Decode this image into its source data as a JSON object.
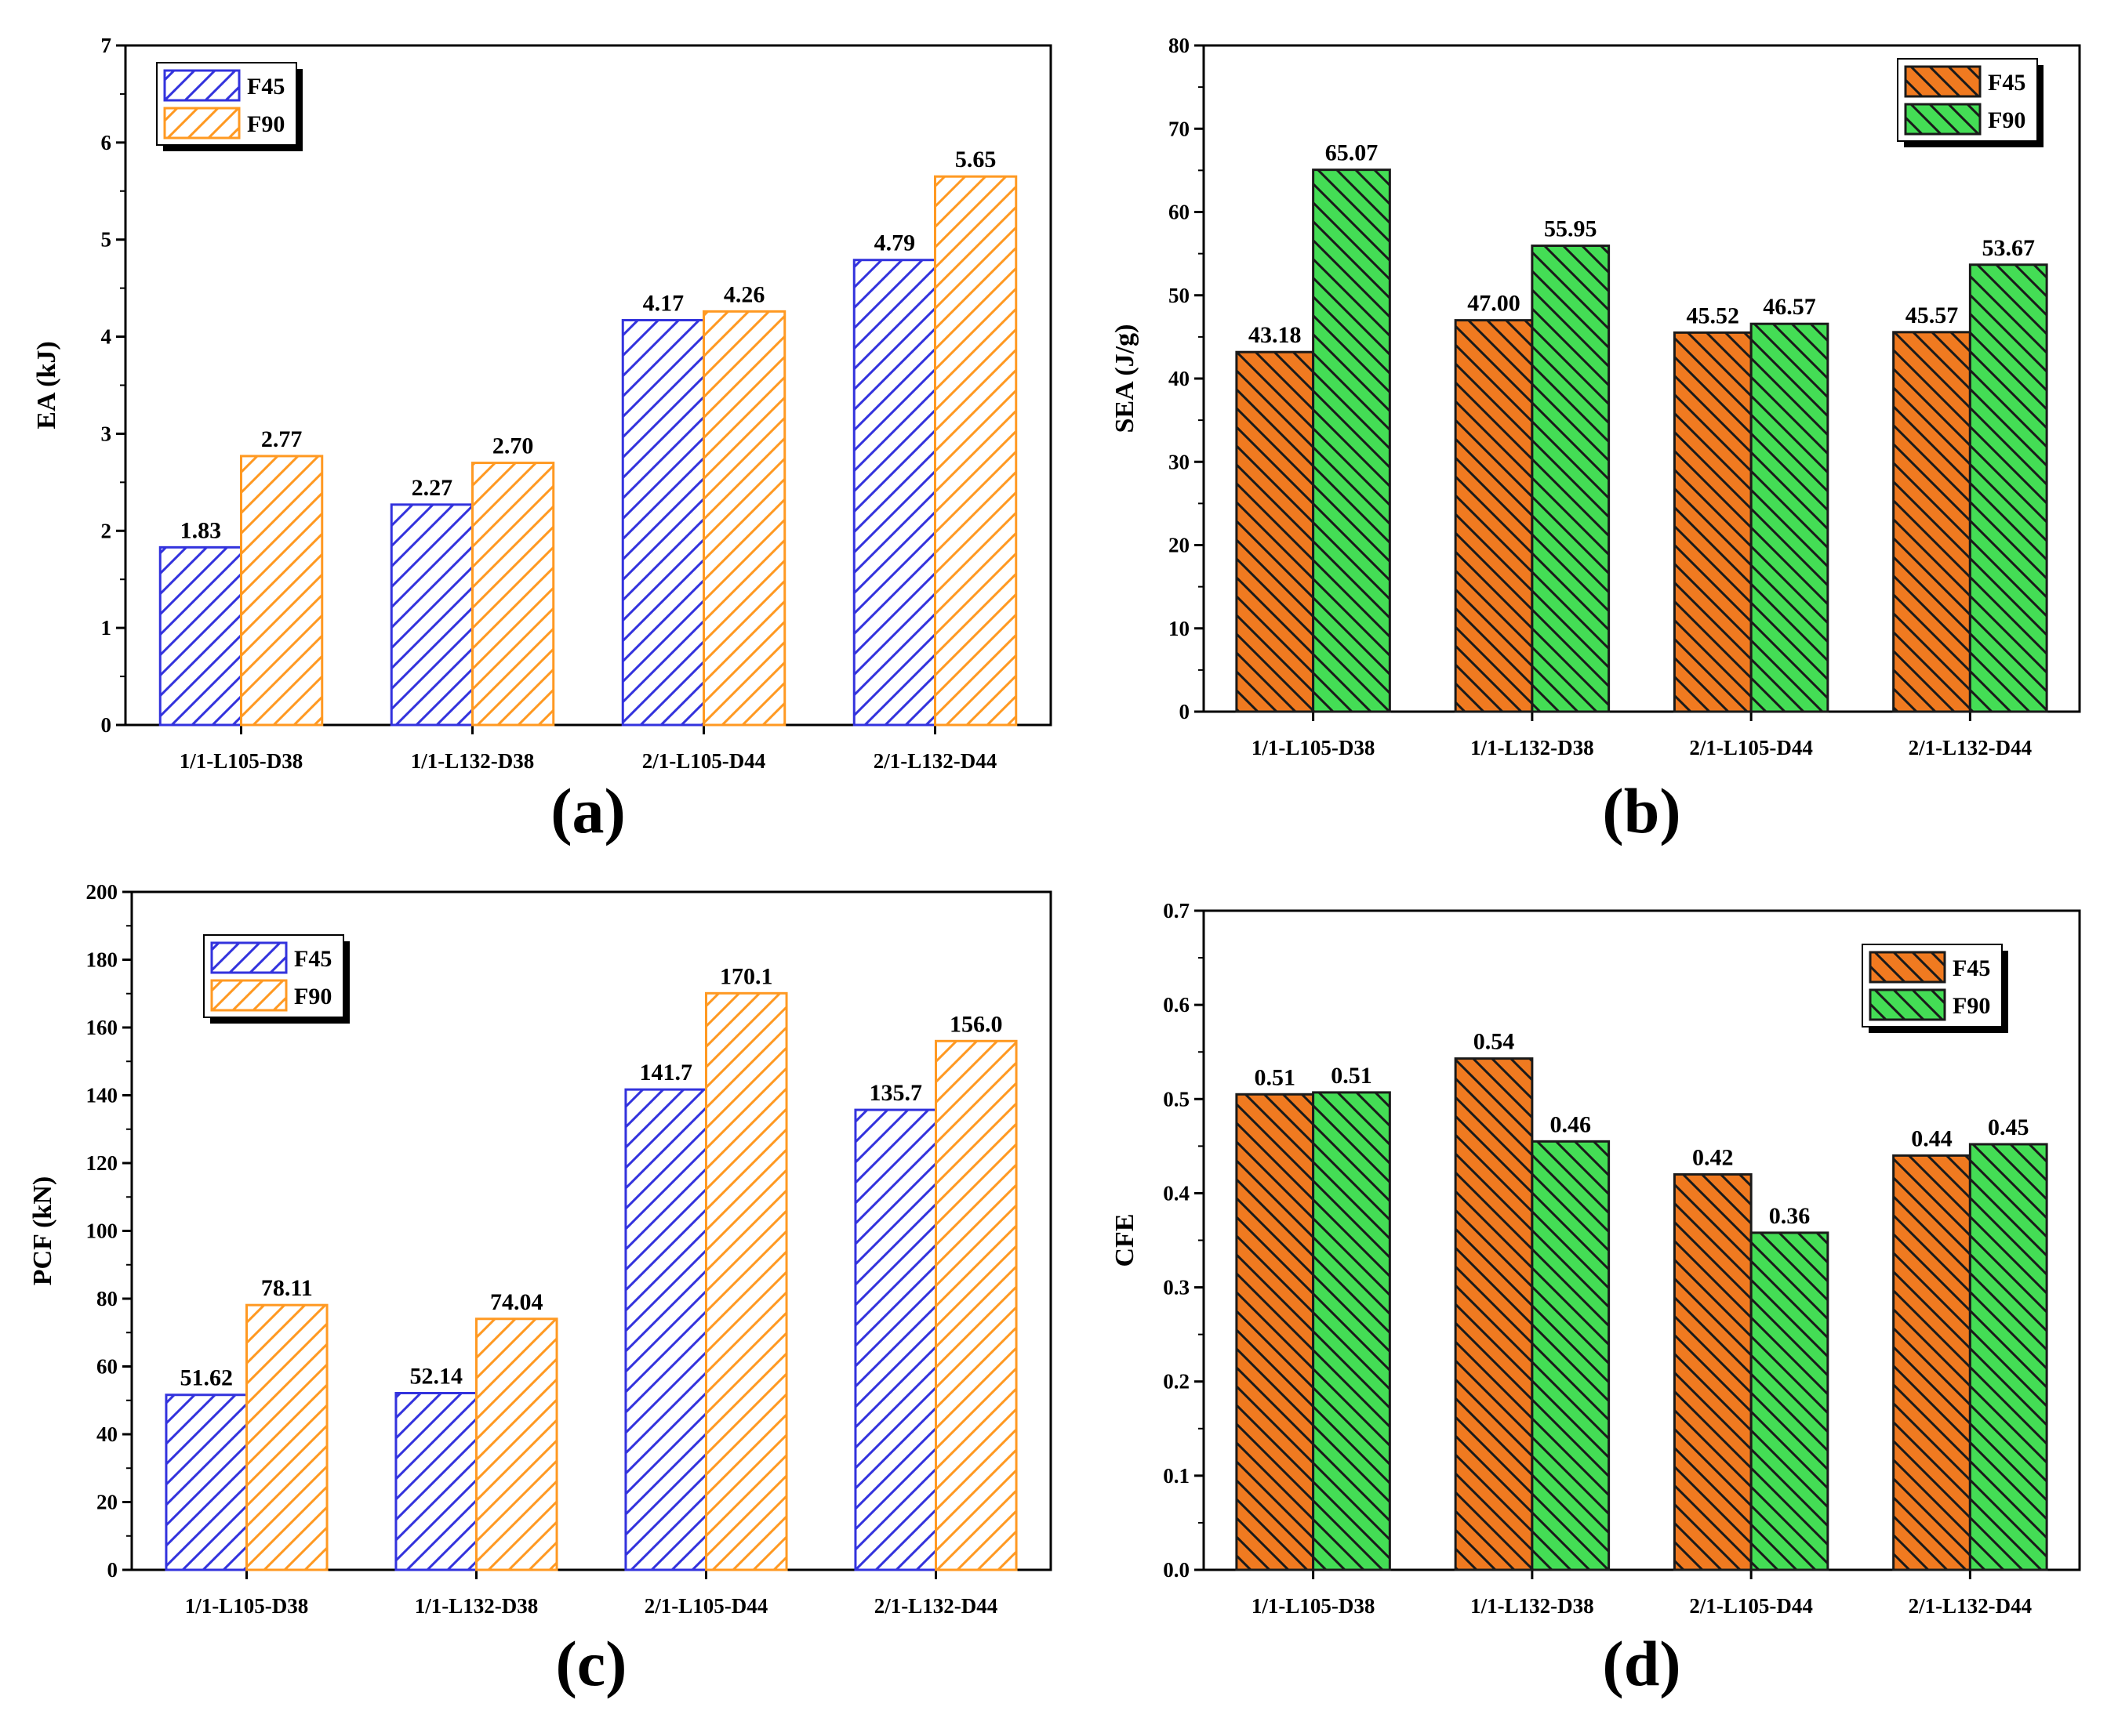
{
  "chart_data": [
    {
      "type": "bar",
      "panel_label": "(a)",
      "categories": [
        "1/1-L105-D38",
        "1/1-L132-D38",
        "2/1-L105-D44",
        "2/1-L132-D44"
      ],
      "series": [
        {
          "name": "F45",
          "values": [
            1.83,
            2.27,
            4.17,
            4.79
          ],
          "labels": [
            "1.83",
            "2.27",
            "4.17",
            "4.79"
          ]
        },
        {
          "name": "F90",
          "values": [
            2.77,
            2.7,
            4.26,
            5.65
          ],
          "labels": [
            "2.77",
            "2.70",
            "4.26",
            "5.65"
          ]
        }
      ],
      "ylabel": "EA (kJ)",
      "ylim": [
        0,
        7
      ],
      "yticks": [
        "0",
        "1",
        "2",
        "3",
        "4",
        "5",
        "6",
        "7"
      ],
      "legend": "top-left",
      "style": "outline-hatch",
      "colors": {
        "F45": "#3333dd",
        "F90": "#ff9922"
      }
    },
    {
      "type": "bar",
      "panel_label": "(b)",
      "categories": [
        "1/1-L105-D38",
        "1/1-L132-D38",
        "2/1-L105-D44",
        "2/1-L132-D44"
      ],
      "series": [
        {
          "name": "F45",
          "values": [
            43.18,
            47.0,
            45.52,
            45.57
          ],
          "labels": [
            "43.18",
            "47.00",
            "45.52",
            "45.57"
          ]
        },
        {
          "name": "F90",
          "values": [
            65.07,
            55.95,
            46.57,
            53.67
          ],
          "labels": [
            "65.07",
            "55.95",
            "46.57",
            "53.67"
          ]
        }
      ],
      "ylabel": "SEA (J/g)",
      "ylim": [
        0,
        80
      ],
      "yticks": [
        "0",
        "10",
        "20",
        "30",
        "40",
        "50",
        "60",
        "70",
        "80"
      ],
      "legend": "top-right",
      "style": "filled-hatch",
      "colors": {
        "F45": "#f07a20",
        "F90": "#44dd55"
      }
    },
    {
      "type": "bar",
      "panel_label": "(c)",
      "categories": [
        "1/1-L105-D38",
        "1/1-L132-D38",
        "2/1-L105-D44",
        "2/1-L132-D44"
      ],
      "series": [
        {
          "name": "F45",
          "values": [
            51.62,
            52.14,
            141.7,
            135.7
          ],
          "labels": [
            "51.62",
            "52.14",
            "141.7",
            "135.7"
          ]
        },
        {
          "name": "F90",
          "values": [
            78.11,
            74.04,
            170.1,
            156.0
          ],
          "labels": [
            "78.11",
            "74.04",
            "170.1",
            "156.0"
          ]
        }
      ],
      "ylabel": "PCF (kN)",
      "ylim": [
        0,
        200
      ],
      "yticks": [
        "0",
        "20",
        "40",
        "60",
        "80",
        "100",
        "120",
        "140",
        "160",
        "180",
        "200"
      ],
      "legend": "top-left",
      "style": "outline-hatch",
      "colors": {
        "F45": "#3333dd",
        "F90": "#ff9922"
      }
    },
    {
      "type": "bar",
      "panel_label": "(d)",
      "categories": [
        "1/1-L105-D38",
        "1/1-L132-D38",
        "2/1-L105-D44",
        "2/1-L132-D44"
      ],
      "series": [
        {
          "name": "F45",
          "values": [
            0.505,
            0.543,
            0.42,
            0.44
          ],
          "labels": [
            "0.51",
            "0.54",
            "0.42",
            "0.44"
          ]
        },
        {
          "name": "F90",
          "values": [
            0.507,
            0.455,
            0.358,
            0.452
          ],
          "labels": [
            "0.51",
            "0.46",
            "0.36",
            "0.45"
          ]
        }
      ],
      "ylabel": "CFE",
      "ylim": [
        0,
        0.7
      ],
      "yticks": [
        "0.0",
        "0.1",
        "0.2",
        "0.3",
        "0.4",
        "0.5",
        "0.6",
        "0.7"
      ],
      "legend": "top-right",
      "style": "filled-hatch",
      "colors": {
        "F45": "#f07a20",
        "F90": "#44dd55"
      }
    }
  ]
}
